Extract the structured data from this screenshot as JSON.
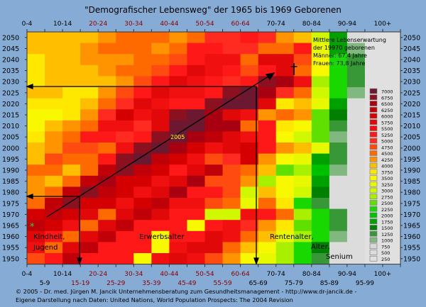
{
  "chart_data": {
    "type": "heatmap",
    "title": "\"Demografischer Lebensweg\" der 1965 bis 1969 Geborenen",
    "x_categories": [
      "0-4",
      "5-9",
      "10-14",
      "15-19",
      "20-24",
      "25-29",
      "30-34",
      "35-39",
      "40-44",
      "45-49",
      "50-54",
      "55-59",
      "60-64",
      "65-69",
      "70-74",
      "75-79",
      "80-84",
      "85-89",
      "90-94",
      "95-99",
      "100+"
    ],
    "x_label_colors": [
      "#000000",
      "#000000",
      "#000000",
      "#8b0000",
      "#8b0000",
      "#8b0000",
      "#8b0000",
      "#8b0000",
      "#8b0000",
      "#8b0000",
      "#8b0000",
      "#8b0000",
      "#8b0000",
      "#000000",
      "#000000",
      "#000000",
      "#000000",
      "#000000",
      "#000000",
      "#000000",
      "#000000"
    ],
    "y_categories": [
      "2050",
      "2045",
      "2040",
      "2035",
      "2030",
      "2025",
      "2020",
      "2015",
      "2010",
      "2005",
      "2000",
      "1995",
      "1990",
      "1985",
      "1980",
      "1975",
      "1970",
      "1965",
      "1960",
      "1955",
      "1950"
    ],
    "values": [
      [
        4000,
        4000,
        4000,
        4000,
        4250,
        4500,
        4500,
        4500,
        4250,
        4500,
        5000,
        5000,
        5250,
        5000,
        4250,
        4000,
        3000,
        1750,
        500,
        250,
        250
      ],
      [
        4000,
        4000,
        4000,
        4250,
        4500,
        4500,
        4500,
        4250,
        4500,
        5250,
        5250,
        5000,
        5000,
        4500,
        4500,
        5250,
        3250,
        1750,
        1000,
        250,
        250
      ],
      [
        3750,
        4000,
        4000,
        4250,
        4250,
        4250,
        4500,
        4500,
        4750,
        5250,
        5500,
        5500,
        4500,
        5750,
        5750,
        4750,
        3500,
        2250,
        1250,
        250,
        250
      ],
      [
        3750,
        4000,
        4000,
        4000,
        4250,
        4500,
        4500,
        4750,
        5250,
        5750,
        5500,
        5250,
        4750,
        5250,
        5750,
        4500,
        3500,
        2250,
        1250,
        250,
        250
      ],
      [
        3750,
        4000,
        4000,
        4000,
        4000,
        4250,
        4750,
        5250,
        5750,
        5500,
        5250,
        5000,
        5250,
        6750,
        6500,
        5500,
        2750,
        2250,
        1250,
        250,
        250
      ],
      [
        4000,
        4000,
        3750,
        3750,
        4250,
        4750,
        5250,
        5750,
        5500,
        5500,
        5250,
        6750,
        7000,
        6500,
        5000,
        4500,
        3000,
        2250,
        1000,
        250,
        250
      ],
      [
        3750,
        3750,
        3750,
        4000,
        4500,
        5000,
        5750,
        5500,
        5250,
        5250,
        6750,
        7000,
        7000,
        5750,
        3750,
        4000,
        3250,
        1750,
        500,
        250,
        250
      ],
      [
        3500,
        3500,
        3750,
        4250,
        5000,
        6000,
        5500,
        5750,
        6750,
        7000,
        6500,
        5750,
        5500,
        4250,
        4500,
        4250,
        2500,
        1500,
        500,
        250,
        250
      ],
      [
        3500,
        4000,
        4250,
        4500,
        5500,
        5500,
        5000,
        5750,
        7000,
        7000,
        6500,
        6500,
        4500,
        5250,
        3750,
        3500,
        2500,
        1250,
        500,
        250,
        250
      ],
      [
        3750,
        4250,
        4500,
        5250,
        5250,
        5000,
        5250,
        6750,
        7000,
        6500,
        6250,
        5750,
        5500,
        5250,
        3500,
        3000,
        2500,
        1000,
        500,
        250,
        250
      ],
      [
        4000,
        4250,
        4750,
        4750,
        4500,
        5500,
        6750,
        7000,
        6500,
        6000,
        5500,
        5750,
        6000,
        5250,
        4250,
        4000,
        3250,
        1250,
        500,
        250,
        250
      ],
      [
        4000,
        4750,
        4500,
        4500,
        5250,
        6750,
        7000,
        6250,
        6000,
        5500,
        4750,
        5000,
        6000,
        4250,
        3500,
        3250,
        1750,
        1250,
        500,
        250,
        250
      ],
      [
        4500,
        4500,
        4000,
        4500,
        6250,
        6750,
        6250,
        6000,
        5250,
        5750,
        6250,
        4750,
        4500,
        4000,
        2500,
        2750,
        2000,
        1000,
        500,
        250,
        250
      ],
      [
        4250,
        4000,
        4500,
        6250,
        6500,
        6000,
        6000,
        5500,
        5750,
        6500,
        4750,
        4750,
        4250,
        2750,
        3500,
        3250,
        1750,
        500,
        500,
        250,
        250
      ],
      [
        4250,
        4500,
        6250,
        6750,
        6250,
        6000,
        5500,
        5750,
        6500,
        5250,
        5250,
        4750,
        3000,
        4000,
        3500,
        3000,
        1500,
        500,
        500,
        250,
        250
      ],
      [
        4500,
        6250,
        6750,
        6000,
        6000,
        5500,
        6000,
        6250,
        5500,
        5500,
        4750,
        4500,
        3250,
        4500,
        3750,
        2250,
        1250,
        500,
        500,
        250,
        250
      ],
      [
        6000,
        6250,
        6000,
        5750,
        4500,
        5750,
        6250,
        5750,
        5250,
        5250,
        3000,
        3000,
        5500,
        5250,
        4500,
        2750,
        2250,
        1250,
        500,
        250,
        250
      ],
      [
        6250,
        6000,
        5500,
        4500,
        5750,
        6250,
        5250,
        5250,
        5250,
        3500,
        5250,
        5500,
        5000,
        4250,
        3750,
        2500,
        2250,
        1250,
        500,
        250,
        250
      ],
      [
        5750,
        5250,
        4500,
        5750,
        6250,
        5250,
        5250,
        3500,
        5250,
        5250,
        5750,
        5500,
        4500,
        4000,
        3250,
        2750,
        2250,
        1000,
        500,
        250,
        250
      ],
      [
        5500,
        4500,
        5750,
        6250,
        5250,
        5250,
        5250,
        3500,
        5500,
        5750,
        5750,
        4500,
        4000,
        3500,
        2750,
        2250,
        1500,
        500,
        500,
        250,
        250
      ],
      [
        4750,
        5250,
        6250,
        5250,
        5250,
        5250,
        3500,
        5500,
        5750,
        5500,
        4750,
        4250,
        3500,
        3250,
        2750,
        2250,
        1250,
        500,
        500,
        250,
        250
      ]
    ],
    "legend": [
      {
        "value": "7000",
        "color": "#6b1830"
      },
      {
        "value": "6750",
        "color": "#8b1020"
      },
      {
        "value": "6500",
        "color": "#a80010"
      },
      {
        "value": "6250",
        "color": "#c00008"
      },
      {
        "value": "6000",
        "color": "#d40000"
      },
      {
        "value": "5750",
        "color": "#e00808"
      },
      {
        "value": "5500",
        "color": "#f01010"
      },
      {
        "value": "5250",
        "color": "#ff1818"
      },
      {
        "value": "5000",
        "color": "#ff2a20"
      },
      {
        "value": "4750",
        "color": "#ff4a10"
      },
      {
        "value": "4500",
        "color": "#ff6a00"
      },
      {
        "value": "4250",
        "color": "#ff9400"
      },
      {
        "value": "4000",
        "color": "#ffbe00"
      },
      {
        "value": "3750",
        "color": "#ffe800"
      },
      {
        "value": "3500",
        "color": "#f8f800"
      },
      {
        "value": "3250",
        "color": "#e8f800"
      },
      {
        "value": "3000",
        "color": "#d0f800"
      },
      {
        "value": "2750",
        "color": "#a8f000"
      },
      {
        "value": "2500",
        "color": "#60e000"
      },
      {
        "value": "2250",
        "color": "#18d800"
      },
      {
        "value": "2000",
        "color": "#00c000"
      },
      {
        "value": "1750",
        "color": "#00a000"
      },
      {
        "value": "1500",
        "color": "#008000"
      },
      {
        "value": "1250",
        "color": "#389838"
      },
      {
        "value": "1000",
        "color": "#80b880"
      },
      {
        "value": "750",
        "color": "#d8d8d8"
      },
      {
        "value": "500",
        "color": "#dcdcdc"
      },
      {
        "value": "250",
        "color": "#e0e0e0"
      }
    ],
    "legend_position": "right",
    "annotations": {
      "life_expectancy": [
        "Mittlere Lebenserwartung",
        "der 19970 geborenen",
        "Männer: 67,4 Jahre",
        "Frauen: 73,8 Jahre"
      ],
      "year_marker": "2005",
      "phase_childhood": [
        "Kindheit,",
        "Jugend"
      ],
      "phase_working": "Erwerbsalter",
      "phase_retirement": [
        "Rentenalter,",
        "Alter,",
        "Senium"
      ],
      "death_symbol": "†",
      "birth_symbol": "*"
    }
  },
  "footer": {
    "line1": "© 2005 -  Dr. med. Jürgen M. Jancik Unternehmensberatung zum Gesundheitsmanagement - http://www.dr-jancik.de -",
    "line2": "Eigene Darstellung nach Daten: United Nations, World Population Prospects: The 2004 Revision"
  },
  "colors": {
    "background": "#86acd6",
    "frame": "#333333",
    "arrow": "#000000",
    "marker_year": "#ffff33",
    "birth_star": "#33cc33"
  }
}
